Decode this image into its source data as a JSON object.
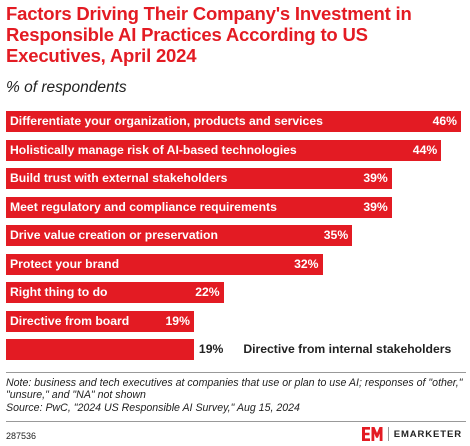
{
  "header": {
    "title": "Factors Driving Their Company's Investment in Responsible AI Practices According to US Executives, April 2024",
    "subtitle": "% of respondents"
  },
  "chart_data": {
    "type": "bar",
    "orientation": "horizontal",
    "categories": [
      "Differentiate your organization, products and services",
      "Holistically manage risk of AI-based technologies",
      "Build trust with external stakeholders",
      "Meet regulatory and compliance requirements",
      "Drive value creation or preservation",
      "Protect your brand",
      "Right thing to do",
      "Directive from board",
      "Directive from internal stakeholders"
    ],
    "values": [
      46,
      44,
      39,
      39,
      35,
      32,
      22,
      19,
      19
    ],
    "value_labels": [
      "46%",
      "44%",
      "39%",
      "39%",
      "35%",
      "32%",
      "22%",
      "19%",
      "19%"
    ],
    "xlim": [
      0,
      46
    ],
    "bar_color": "#e31b23",
    "title": "Factors Driving Their Company's Investment in Responsible AI Practices According to US Executives, April 2024",
    "subtitle": "% of respondents"
  },
  "footer": {
    "note": "Note: business and tech executives at companies that use or plan to use AI; responses of \"other,\" \"unsure,\" and \"NA\" not shown",
    "source": "Source: PwC, \"2024 US Responsible AI Survey,\" Aug 15, 2024",
    "chart_id": "287536",
    "brand": "EMARKETER",
    "logo_text": "EM"
  }
}
